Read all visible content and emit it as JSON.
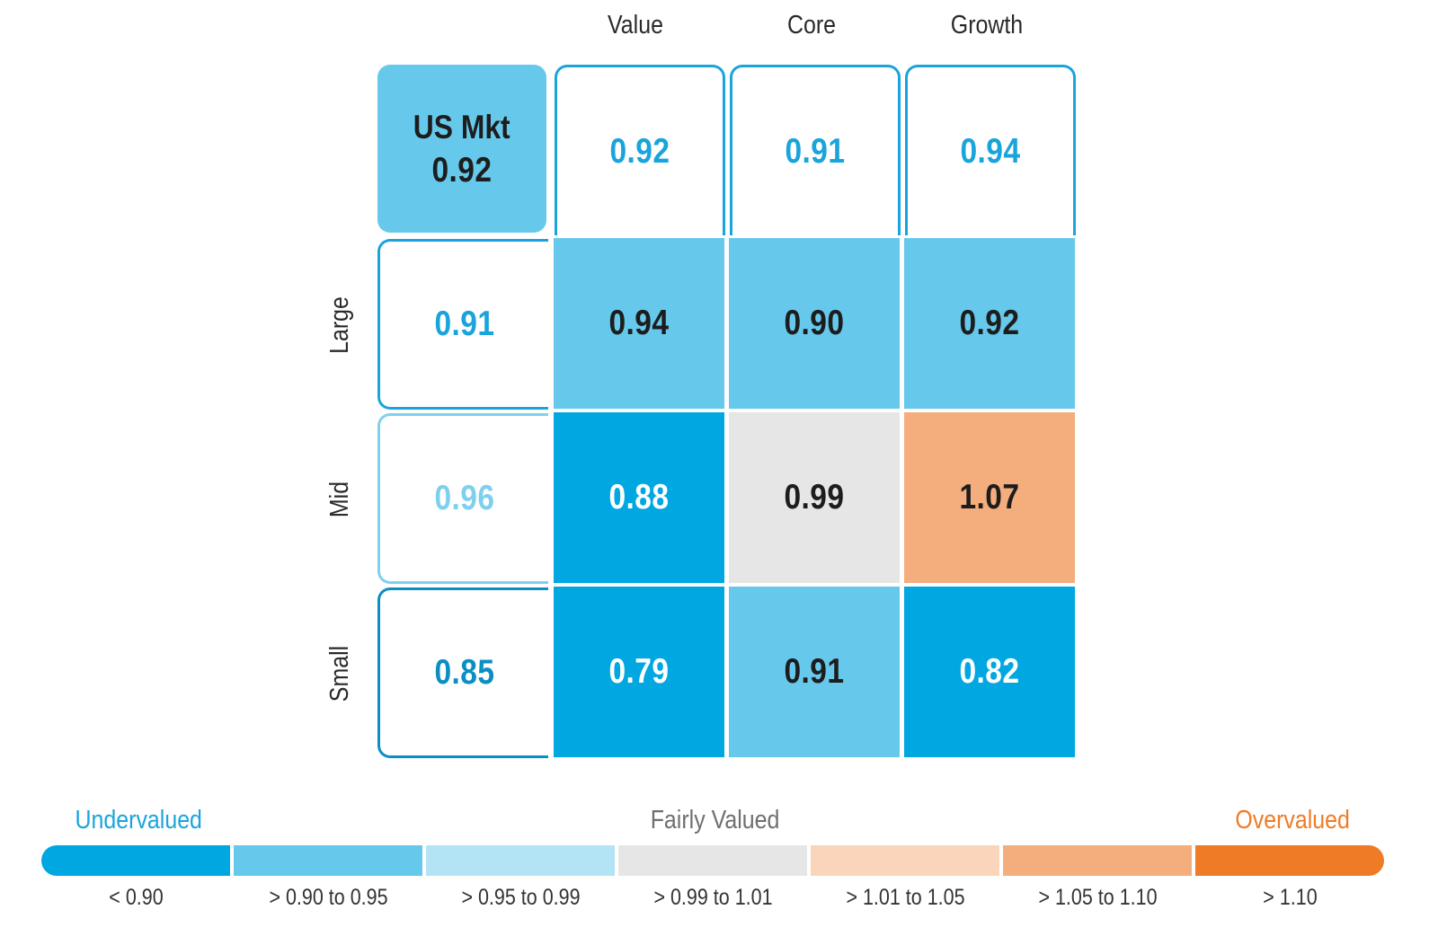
{
  "columns": [
    "Value",
    "Core",
    "Growth"
  ],
  "rows": [
    "Large",
    "Mid",
    "Small"
  ],
  "market": {
    "label": "US Mkt",
    "value": "0.92"
  },
  "column_totals": [
    "0.92",
    "0.91",
    "0.94"
  ],
  "row_totals": [
    "0.91",
    "0.96",
    "0.85"
  ],
  "matrix": [
    [
      "0.94",
      "0.90",
      "0.92"
    ],
    [
      "0.88",
      "0.99",
      "1.07"
    ],
    [
      "0.79",
      "0.91",
      "0.82"
    ]
  ],
  "legend": {
    "left_title": "Undervalued",
    "center_title": "Fairly Valued",
    "right_title": "Overvalued",
    "bins": [
      {
        "label": "< 0.90",
        "color": "#00a7e1"
      },
      {
        "label": "> 0.90 to 0.95",
        "color": "#66c9ec"
      },
      {
        "label": "> 0.95 to 0.99",
        "color": "#b3e4f5"
      },
      {
        "label": "> 0.99 to 1.01",
        "color": "#e6e6e6"
      },
      {
        "label": "> 1.01 to 1.05",
        "color": "#fad5bb"
      },
      {
        "label": "> 1.05 to 1.10",
        "color": "#f4ae7d"
      },
      {
        "label": "> 1.10",
        "color": "#f07b26"
      }
    ]
  },
  "chart_data": {
    "type": "heatmap",
    "title": "",
    "x_categories": [
      "Value",
      "Core",
      "Growth"
    ],
    "y_categories": [
      "Large",
      "Mid",
      "Small"
    ],
    "values": [
      [
        0.94,
        0.9,
        0.92
      ],
      [
        0.88,
        0.99,
        1.07
      ],
      [
        0.79,
        0.91,
        0.82
      ]
    ],
    "column_totals": [
      0.92,
      0.91,
      0.94
    ],
    "row_totals": [
      0.91,
      0.96,
      0.85
    ],
    "overall": 0.92,
    "thresholds": [
      0.9,
      0.95,
      0.99,
      1.01,
      1.05,
      1.1
    ]
  }
}
